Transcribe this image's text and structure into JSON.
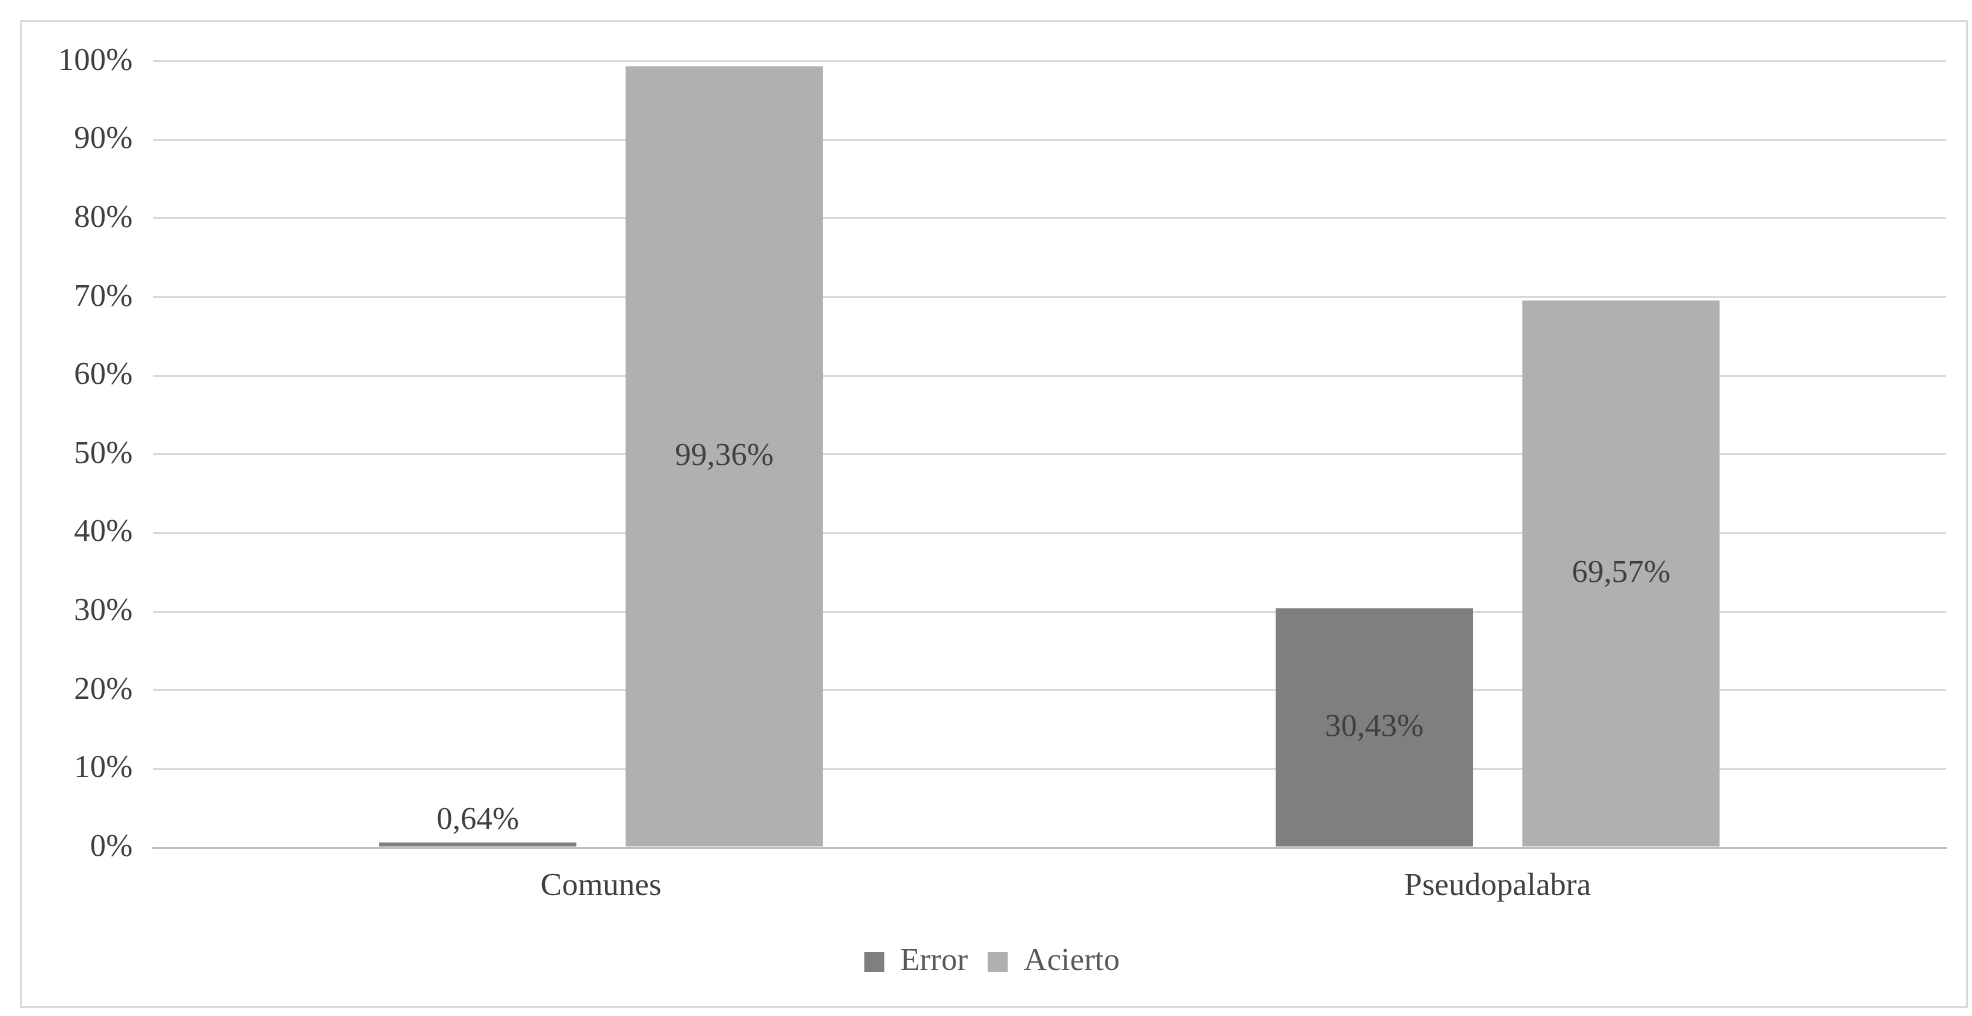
{
  "chart_data": {
    "type": "bar",
    "categories": [
      "Comunes",
      "Pseudopalabra"
    ],
    "series": [
      {
        "name": "Error",
        "color": "#7f7f7f",
        "values": [
          0.64,
          30.43
        ],
        "value_labels": [
          "0,64%",
          "30,43%"
        ]
      },
      {
        "name": "Acierto",
        "color": "#b0b0b0",
        "values": [
          99.36,
          69.57
        ],
        "value_labels": [
          "99,36%",
          "69,57%"
        ]
      }
    ],
    "ylim": [
      0,
      100
    ],
    "yticks": [
      {
        "value": 0,
        "label": "0%"
      },
      {
        "value": 10,
        "label": "10%"
      },
      {
        "value": 20,
        "label": "20%"
      },
      {
        "value": 30,
        "label": "30%"
      },
      {
        "value": 40,
        "label": "40%"
      },
      {
        "value": 50,
        "label": "50%"
      },
      {
        "value": 60,
        "label": "60%"
      },
      {
        "value": 70,
        "label": "70%"
      },
      {
        "value": 80,
        "label": "80%"
      },
      {
        "value": 90,
        "label": "90%"
      },
      {
        "value": 100,
        "label": "100%"
      }
    ],
    "grid": "y",
    "legend": "bottom"
  }
}
